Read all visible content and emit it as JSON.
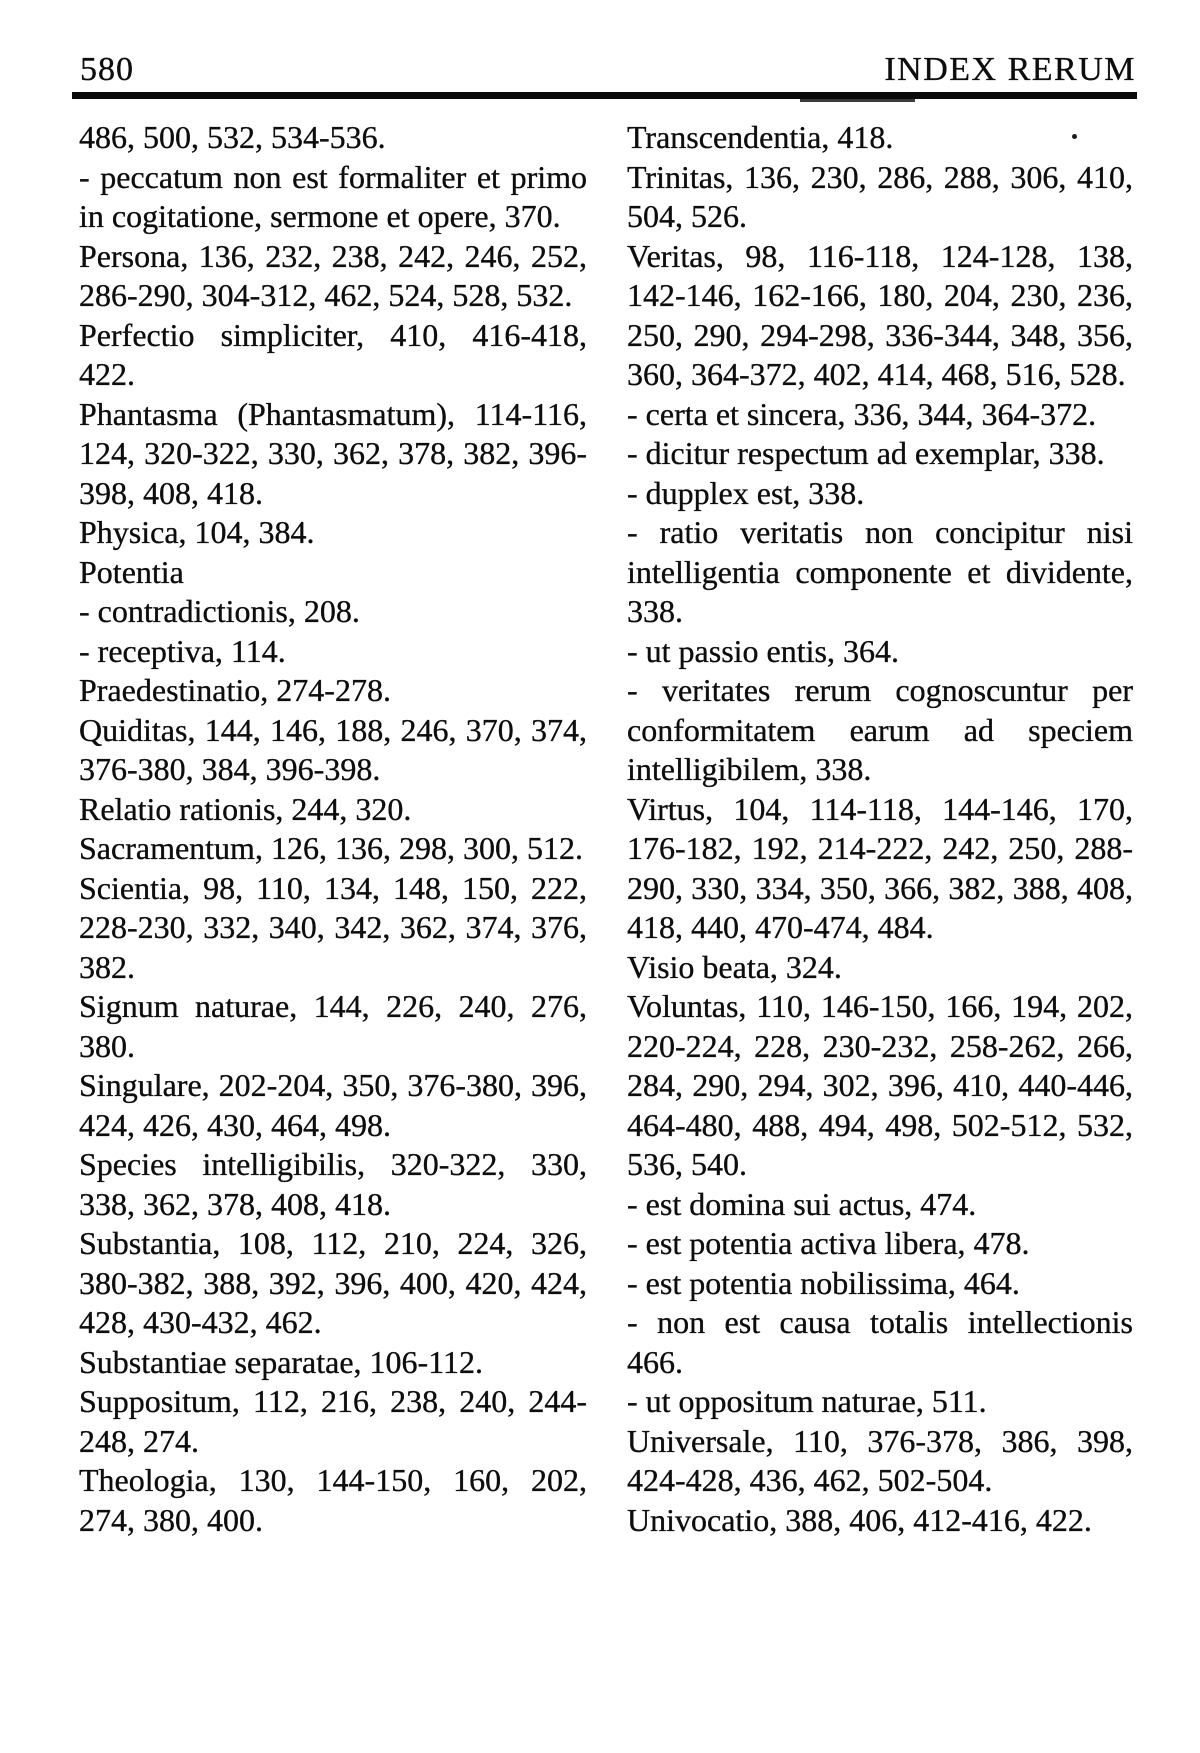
{
  "header": {
    "page_number": "580",
    "title": "INDEX RERUM"
  },
  "columns": {
    "left": [
      "486, 500, 532, 534-536.",
      "- peccatum non est formaliter et primo in cogitatione, sermone et opere, 370.",
      "Persona, 136, 232, 238, 242, 246, 252, 286-290, 304-312, 462, 524, 528, 532.",
      "Perfectio simpliciter, 410, 416-418, 422.",
      "Phantasma (Phantasmatum), 114-116, 124, 320-322, 330, 362, 378, 382, 396-398, 408, 418.",
      "Physica, 104, 384.",
      "Potentia",
      "- contradictionis, 208.",
      "- receptiva, 114.",
      "Praedestinatio, 274-278.",
      "Quiditas, 144, 146, 188, 246, 370, 374, 376-380, 384, 396-398.",
      "Relatio rationis, 244, 320.",
      "Sacramentum, 126, 136, 298, 300, 512.",
      "Scientia, 98, 110, 134, 148, 150, 222, 228-230, 332, 340, 342, 362, 374, 376, 382.",
      "Signum naturae, 144, 226, 240, 276, 380.",
      "Singulare, 202-204, 350, 376-380, 396, 424, 426, 430, 464, 498.",
      "Species intelligibilis, 320-322, 330, 338, 362, 378, 408, 418.",
      "Substantia, 108, 112, 210, 224, 326, 380-382, 388, 392, 396, 400, 420, 424, 428, 430-432, 462.",
      "Substantiae separatae, 106-112.",
      "Suppositum, 112, 216, 238, 240, 244-248, 274.",
      "Theologia, 130, 144-150, 160, 202, 274, 380, 400."
    ],
    "right": [
      "Transcendentia, 418.",
      "Trinitas, 136, 230, 286, 288, 306, 410, 504, 526.",
      "Veritas, 98, 116-118, 124-128, 138, 142-146, 162-166, 180, 204, 230, 236, 250, 290, 294-298, 336-344, 348, 356, 360, 364-372, 402, 414, 468, 516, 528.",
      "- certa et sincera, 336, 344, 364-372.",
      "- dicitur respectum ad exemplar, 338.",
      "- dupplex est, 338.",
      "- ratio veritatis non concipitur nisi intelligentia componente et dividente, 338.",
      "- ut passio entis, 364.",
      "- veritates rerum cognoscuntur per conformitatem earum ad speciem intelligibilem, 338.",
      "Virtus, 104, 114-118, 144-146, 170, 176-182, 192, 214-222, 242, 250, 288-290, 330, 334, 350, 366, 382, 388, 408, 418, 440, 470-474, 484.",
      "Visio beata, 324.",
      "Voluntas, 110, 146-150, 166, 194, 202, 220-224, 228, 230-232, 258-262, 266, 284, 290, 294, 302, 396, 410, 440-446, 464-480, 488, 494, 498, 502-512, 532, 536, 540.",
      "- est domina sui actus, 474.",
      "- est potentia activa libera, 478.",
      "- est potentia nobilissima, 464.",
      "- non est causa totalis intellectionis 466.",
      "- ut oppositum naturae, 511.",
      "Universale, 110, 376-378, 386, 398, 424-428, 436, 462, 502-504.",
      "Univocatio, 388, 406, 412-416, 422."
    ]
  },
  "colors": {
    "ink": "#0d0d0d",
    "paper": "#ffffff"
  }
}
